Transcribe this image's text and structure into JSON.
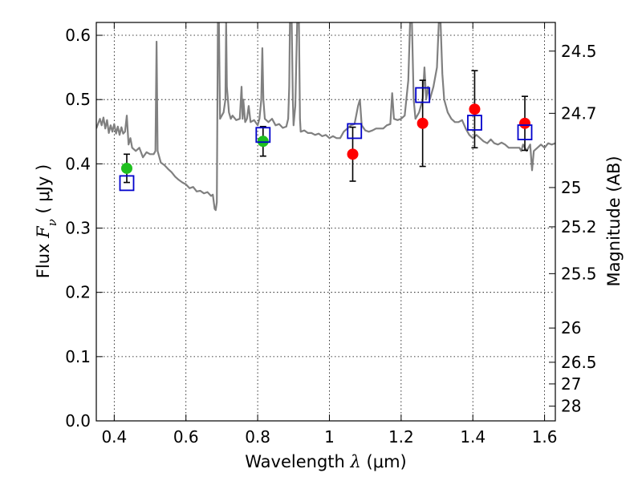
{
  "chart_data": {
    "type": "scatter",
    "xlabel_prefix": "Wavelength",
    "xlabel_symbol": "λ",
    "xlabel_unit": "(μm)",
    "ylabel_prefix": "Flux",
    "ylabel_symbol": "F",
    "ylabel_subscript": "ν",
    "ylabel_unit": "( μJy )",
    "y2label": "Magnitude (AB)",
    "xlim": [
      0.35,
      1.63
    ],
    "ylim": [
      0.0,
      0.62
    ],
    "grid": true,
    "x_ticks": [
      0.4,
      0.6,
      0.8,
      1.0,
      1.2,
      1.4,
      1.6
    ],
    "x_tick_labels": [
      "0.4",
      "0.6",
      "0.8",
      "1",
      "1.2",
      "1.4",
      "1.6"
    ],
    "y_ticks": [
      0.0,
      0.1,
      0.2,
      0.3,
      0.4,
      0.5,
      0.6
    ],
    "y_tick_labels": [
      "0.0",
      "0.1",
      "0.2",
      "0.3",
      "0.4",
      "0.5",
      "0.6"
    ],
    "y2_ticks": [
      {
        "label": "24.5",
        "flux": 0.5754
      },
      {
        "label": "24.7",
        "flux": 0.4786
      },
      {
        "label": "25",
        "flux": 0.3631
      },
      {
        "label": "25.2",
        "flux": 0.302
      },
      {
        "label": "25.5",
        "flux": 0.2291
      },
      {
        "label": "26",
        "flux": 0.1445
      },
      {
        "label": "26.5",
        "flux": 0.0912
      },
      {
        "label": "27",
        "flux": 0.0575
      },
      {
        "label": "28",
        "flux": 0.0229
      }
    ],
    "series": [
      {
        "kind": "line",
        "color": "#808080",
        "points": [
          [
            0.35,
            0.455
          ],
          [
            0.36,
            0.47
          ],
          [
            0.365,
            0.46
          ],
          [
            0.37,
            0.472
          ],
          [
            0.375,
            0.455
          ],
          [
            0.38,
            0.468
          ],
          [
            0.385,
            0.448
          ],
          [
            0.39,
            0.46
          ],
          [
            0.395,
            0.45
          ],
          [
            0.4,
            0.462
          ],
          [
            0.405,
            0.447
          ],
          [
            0.41,
            0.458
          ],
          [
            0.415,
            0.445
          ],
          [
            0.42,
            0.457
          ],
          [
            0.425,
            0.447
          ],
          [
            0.43,
            0.45
          ],
          [
            0.435,
            0.475
          ],
          [
            0.44,
            0.43
          ],
          [
            0.445,
            0.44
          ],
          [
            0.45,
            0.425
          ],
          [
            0.46,
            0.42
          ],
          [
            0.47,
            0.425
          ],
          [
            0.48,
            0.41
          ],
          [
            0.49,
            0.418
          ],
          [
            0.5,
            0.415
          ],
          [
            0.51,
            0.415
          ],
          [
            0.515,
            0.42
          ],
          [
            0.518,
            0.59
          ],
          [
            0.521,
            0.42
          ],
          [
            0.53,
            0.402
          ],
          [
            0.54,
            0.398
          ],
          [
            0.55,
            0.392
          ],
          [
            0.56,
            0.387
          ],
          [
            0.57,
            0.38
          ],
          [
            0.58,
            0.375
          ],
          [
            0.59,
            0.371
          ],
          [
            0.6,
            0.368
          ],
          [
            0.61,
            0.362
          ],
          [
            0.62,
            0.364
          ],
          [
            0.63,
            0.357
          ],
          [
            0.64,
            0.358
          ],
          [
            0.65,
            0.354
          ],
          [
            0.66,
            0.356
          ],
          [
            0.67,
            0.35
          ],
          [
            0.675,
            0.352
          ],
          [
            0.68,
            0.33
          ],
          [
            0.683,
            0.328
          ],
          [
            0.686,
            0.34
          ],
          [
            0.689,
            0.62
          ],
          [
            0.692,
            0.62
          ],
          [
            0.695,
            0.47
          ],
          [
            0.7,
            0.475
          ],
          [
            0.705,
            0.48
          ],
          [
            0.71,
            0.5
          ],
          [
            0.712,
            0.62
          ],
          [
            0.714,
            0.52
          ],
          [
            0.72,
            0.48
          ],
          [
            0.725,
            0.47
          ],
          [
            0.73,
            0.475
          ],
          [
            0.74,
            0.468
          ],
          [
            0.75,
            0.47
          ],
          [
            0.755,
            0.52
          ],
          [
            0.758,
            0.47
          ],
          [
            0.76,
            0.5
          ],
          [
            0.765,
            0.465
          ],
          [
            0.77,
            0.47
          ],
          [
            0.775,
            0.49
          ],
          [
            0.78,
            0.465
          ],
          [
            0.79,
            0.468
          ],
          [
            0.8,
            0.46
          ],
          [
            0.805,
            0.47
          ],
          [
            0.81,
            0.5
          ],
          [
            0.813,
            0.58
          ],
          [
            0.816,
            0.5
          ],
          [
            0.82,
            0.47
          ],
          [
            0.83,
            0.465
          ],
          [
            0.84,
            0.47
          ],
          [
            0.85,
            0.46
          ],
          [
            0.86,
            0.462
          ],
          [
            0.87,
            0.456
          ],
          [
            0.88,
            0.458
          ],
          [
            0.885,
            0.47
          ],
          [
            0.888,
            0.52
          ],
          [
            0.89,
            0.62
          ],
          [
            0.895,
            0.62
          ],
          [
            0.898,
            0.5
          ],
          [
            0.9,
            0.46
          ],
          [
            0.905,
            0.49
          ],
          [
            0.91,
            0.62
          ],
          [
            0.915,
            0.62
          ],
          [
            0.918,
            0.47
          ],
          [
            0.92,
            0.45
          ],
          [
            0.93,
            0.452
          ],
          [
            0.94,
            0.448
          ],
          [
            0.95,
            0.448
          ],
          [
            0.96,
            0.445
          ],
          [
            0.97,
            0.447
          ],
          [
            0.98,
            0.443
          ],
          [
            0.99,
            0.445
          ],
          [
            1.0,
            0.44
          ],
          [
            1.01,
            0.443
          ],
          [
            1.02,
            0.44
          ],
          [
            1.03,
            0.44
          ],
          [
            1.04,
            0.45
          ],
          [
            1.05,
            0.455
          ],
          [
            1.06,
            0.46
          ],
          [
            1.07,
            0.462
          ],
          [
            1.08,
            0.49
          ],
          [
            1.085,
            0.5
          ],
          [
            1.09,
            0.46
          ],
          [
            1.1,
            0.452
          ],
          [
            1.11,
            0.45
          ],
          [
            1.12,
            0.452
          ],
          [
            1.13,
            0.455
          ],
          [
            1.14,
            0.455
          ],
          [
            1.15,
            0.455
          ],
          [
            1.16,
            0.46
          ],
          [
            1.17,
            0.462
          ],
          [
            1.175,
            0.51
          ],
          [
            1.18,
            0.47
          ],
          [
            1.19,
            0.468
          ],
          [
            1.2,
            0.47
          ],
          [
            1.21,
            0.475
          ],
          [
            1.22,
            0.53
          ],
          [
            1.225,
            0.62
          ],
          [
            1.23,
            0.62
          ],
          [
            1.235,
            0.5
          ],
          [
            1.24,
            0.47
          ],
          [
            1.25,
            0.48
          ],
          [
            1.26,
            0.5
          ],
          [
            1.265,
            0.55
          ],
          [
            1.27,
            0.5
          ],
          [
            1.275,
            0.52
          ],
          [
            1.28,
            0.5
          ],
          [
            1.29,
            0.52
          ],
          [
            1.3,
            0.55
          ],
          [
            1.305,
            0.62
          ],
          [
            1.31,
            0.62
          ],
          [
            1.315,
            0.54
          ],
          [
            1.32,
            0.5
          ],
          [
            1.33,
            0.48
          ],
          [
            1.34,
            0.47
          ],
          [
            1.35,
            0.465
          ],
          [
            1.36,
            0.465
          ],
          [
            1.37,
            0.468
          ],
          [
            1.38,
            0.455
          ],
          [
            1.39,
            0.445
          ],
          [
            1.4,
            0.44
          ],
          [
            1.41,
            0.445
          ],
          [
            1.42,
            0.44
          ],
          [
            1.43,
            0.435
          ],
          [
            1.44,
            0.432
          ],
          [
            1.45,
            0.438
          ],
          [
            1.46,
            0.432
          ],
          [
            1.47,
            0.43
          ],
          [
            1.48,
            0.433
          ],
          [
            1.49,
            0.43
          ],
          [
            1.5,
            0.425
          ],
          [
            1.51,
            0.425
          ],
          [
            1.52,
            0.425
          ],
          [
            1.53,
            0.425
          ],
          [
            1.535,
            0.42
          ],
          [
            1.54,
            0.43
          ],
          [
            1.55,
            0.42
          ],
          [
            1.56,
            0.43
          ],
          [
            1.565,
            0.39
          ],
          [
            1.57,
            0.42
          ],
          [
            1.58,
            0.425
          ],
          [
            1.59,
            0.43
          ],
          [
            1.6,
            0.425
          ],
          [
            1.61,
            0.432
          ],
          [
            1.62,
            0.43
          ],
          [
            1.63,
            0.432
          ]
        ]
      },
      {
        "kind": "points",
        "marker": "circle",
        "color": "#1fbf1f",
        "x": [
          0.435,
          0.815
        ],
        "y": [
          0.393,
          0.435
        ],
        "yerr": [
          0.022,
          0.023
        ]
      },
      {
        "kind": "points",
        "marker": "circle",
        "color": "#ff0000",
        "x": [
          1.065,
          1.26,
          1.405,
          1.545
        ],
        "y": [
          0.415,
          0.463,
          0.485,
          0.463
        ],
        "yerr": [
          0.042,
          0.067,
          0.06,
          0.042
        ]
      },
      {
        "kind": "points",
        "marker": "open-square",
        "color": "#0000cc",
        "x": [
          0.435,
          0.815,
          1.07,
          1.26,
          1.405,
          1.545
        ],
        "y": [
          0.37,
          0.445,
          0.451,
          0.507,
          0.464,
          0.449
        ]
      }
    ]
  }
}
